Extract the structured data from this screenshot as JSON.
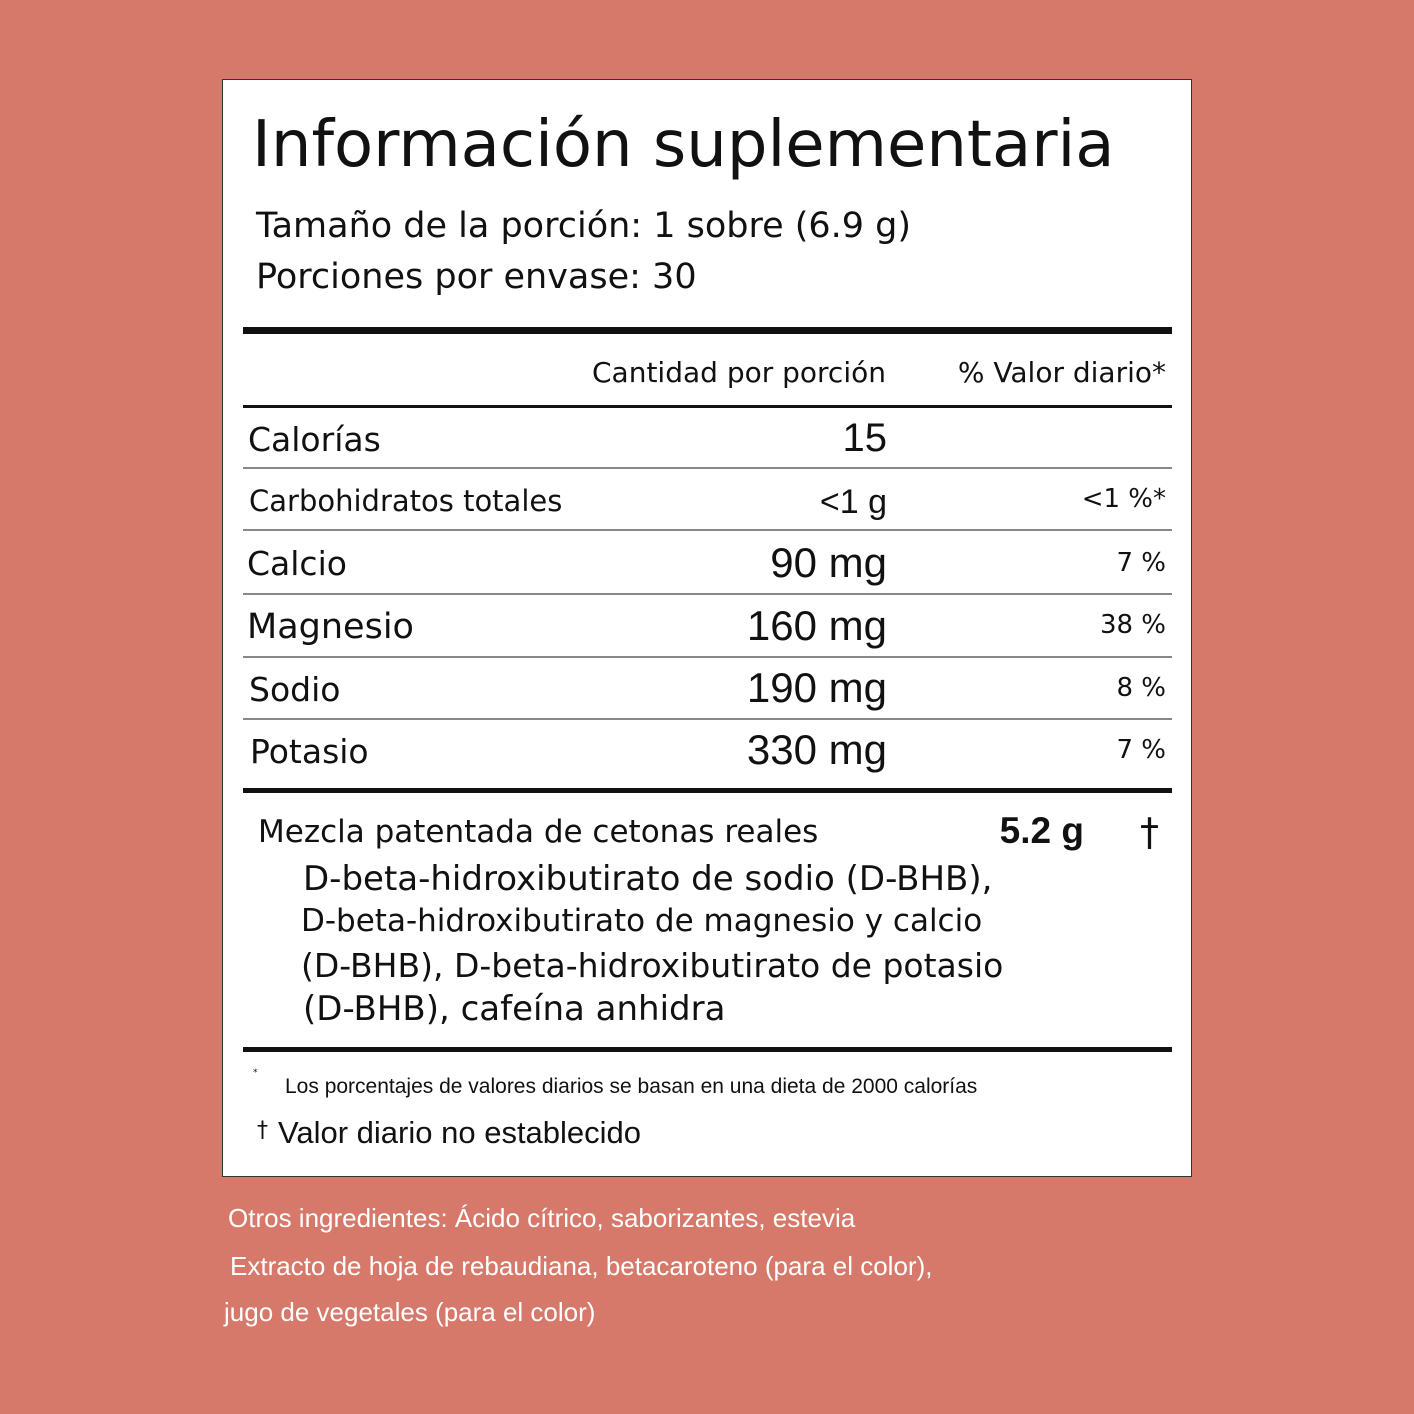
{
  "title": "Información suplementaria",
  "serving_size": "Tamaño de la porción: 1 sobre (6.9 g)",
  "servings_per_container": "Porciones por envase: 30",
  "headers": {
    "amount": "Cantidad por porción",
    "daily_value": "% Valor diario*"
  },
  "rows": [
    {
      "name": "Calorías",
      "amount": "15",
      "dv": ""
    },
    {
      "name": "Carbohidratos totales",
      "amount": "<1 g",
      "dv": "<1 %*"
    },
    {
      "name": "Calcio",
      "amount": "90 mg",
      "dv": "7 %"
    },
    {
      "name": "Magnesio",
      "amount": "160 mg",
      "dv": "38 %"
    },
    {
      "name": "Sodio",
      "amount": "190 mg",
      "dv": "8 %"
    },
    {
      "name": "Potasio",
      "amount": "330 mg",
      "dv": "7 %"
    }
  ],
  "blend": {
    "name": "Mezcla patentada de cetonas reales",
    "amount": "5.2 g",
    "dv": "†",
    "lines": [
      "D-beta-hidroxibutirato de sodio (D-BHB),",
      "D-beta-hidroxibutirato de magnesio y calcio",
      "(D-BHB), D-beta-hidroxibutirato de potasio",
      "(D-BHB), cafeína anhidra"
    ]
  },
  "footnotes": {
    "asterisk": "*",
    "percent_note": "Los porcentajes de valores diarios se basan en una dieta de 2000 calorías",
    "dagger_symbol": "†",
    "dagger_note": "Valor diario no establecido"
  },
  "other_ingredients": [
    "Otros ingredientes: Ácido cítrico, saborizantes, estevia",
    "Extracto de hoja de rebaudiana, betacaroteno (para el color),",
    "jugo de vegetales (para el color)"
  ],
  "colors": {
    "background": "#d6796a",
    "panel": "#ffffff",
    "text": "#111111"
  }
}
